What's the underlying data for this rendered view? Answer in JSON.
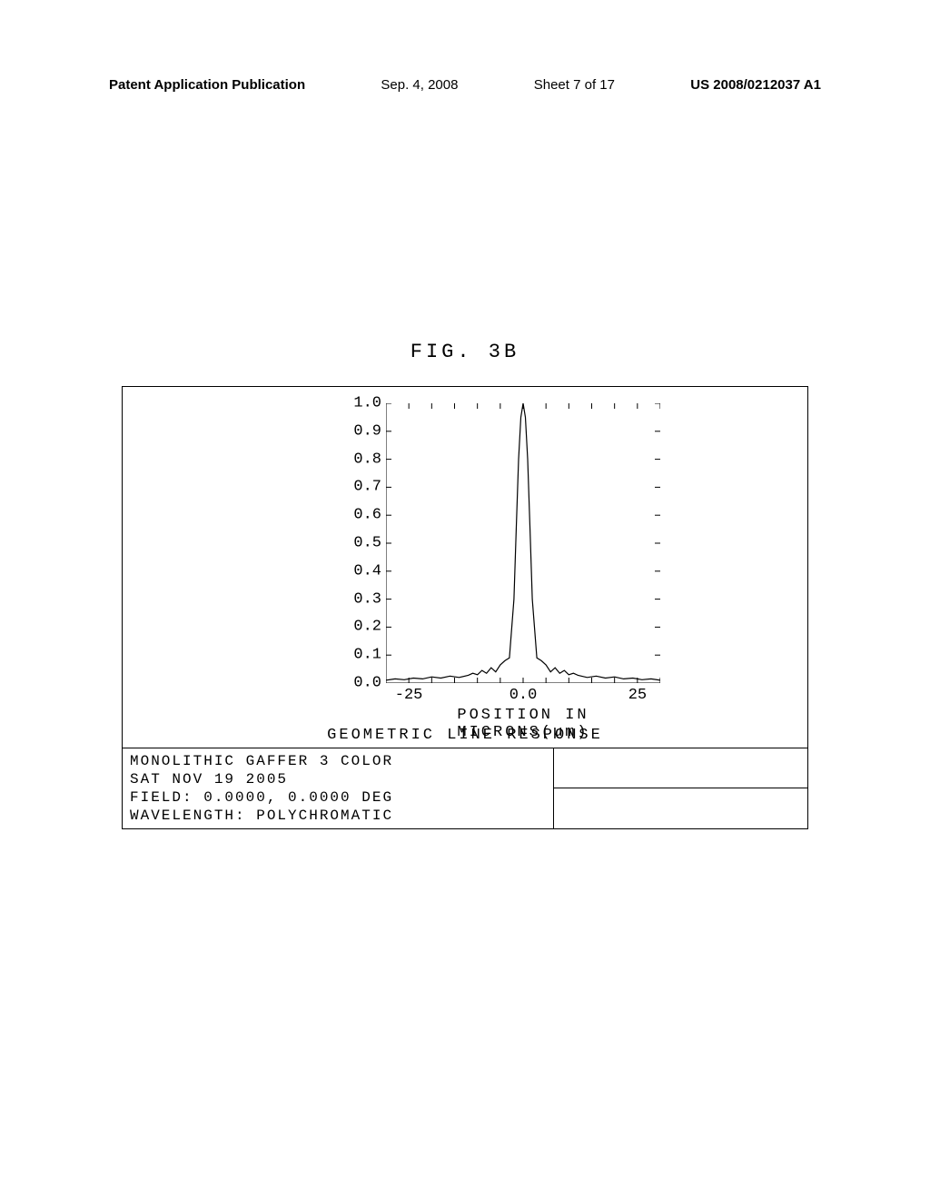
{
  "header": {
    "left": "Patent Application Publication",
    "center_date": "Sep. 4, 2008",
    "center_sheet": "Sheet 7 of 17",
    "right": "US 2008/0212037 A1"
  },
  "figure": {
    "title": "FIG. 3B",
    "chart": {
      "type": "line",
      "x_label": "POSITION IN MICRONS(µm)",
      "mid_label": "GEOMETRIC LINE RESPONSE",
      "y_ticks": [
        "1.0",
        "0.9",
        "0.8",
        "0.7",
        "0.6",
        "0.5",
        "0.4",
        "0.3",
        "0.2",
        "0.1",
        "0.0"
      ],
      "x_ticks": [
        "-25",
        "0.0",
        "25"
      ],
      "xlim": [
        -30,
        30
      ],
      "ylim": [
        0,
        1.0
      ],
      "line_color": "#000000",
      "background_color": "#ffffff",
      "axis_color": "#000000",
      "data": {
        "x": [
          -30,
          -28,
          -26,
          -24,
          -22,
          -20,
          -18,
          -16,
          -14,
          -12,
          -11,
          -10,
          -9,
          -8,
          -7,
          -6,
          -5,
          -4,
          -3,
          -2,
          -1.5,
          -1,
          -0.5,
          0,
          0.5,
          1,
          1.5,
          2,
          3,
          4,
          5,
          6,
          7,
          8,
          9,
          10,
          11,
          12,
          14,
          16,
          18,
          20,
          22,
          24,
          26,
          28,
          30
        ],
        "y": [
          0.01,
          0.015,
          0.012,
          0.018,
          0.015,
          0.022,
          0.018,
          0.025,
          0.02,
          0.028,
          0.035,
          0.03,
          0.045,
          0.035,
          0.055,
          0.04,
          0.065,
          0.08,
          0.09,
          0.3,
          0.55,
          0.8,
          0.95,
          1.0,
          0.95,
          0.8,
          0.55,
          0.3,
          0.09,
          0.08,
          0.065,
          0.04,
          0.055,
          0.035,
          0.045,
          0.03,
          0.035,
          0.028,
          0.02,
          0.025,
          0.018,
          0.022,
          0.015,
          0.018,
          0.012,
          0.015,
          0.01
        ]
      }
    },
    "info": {
      "line1": "MONOLITHIC GAFFER 3 COLOR",
      "line2": "SAT NOV 19 2005",
      "line3": "FIELD: 0.0000, 0.0000 DEG",
      "line4": "WAVELENGTH: POLYCHROMATIC"
    }
  }
}
